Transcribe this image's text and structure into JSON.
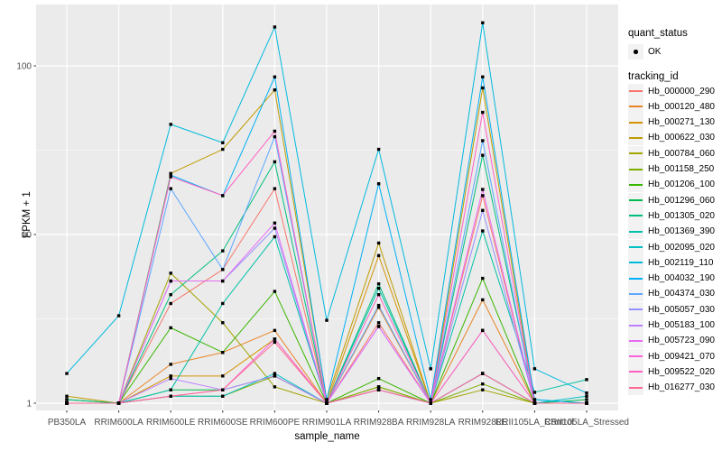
{
  "figure": {
    "background": "#FFFFFF",
    "panel_background": "#EBEBEB",
    "grid_color": "#FFFFFF",
    "tick_label_color": "#4D4D4D",
    "tick_mark_color": "#333333",
    "point_color": "#000000",
    "legend_key_fill": "#F2F2F2"
  },
  "axes": {
    "y": {
      "title": "FPKM + 1",
      "scale": "log10",
      "major_ticks": [
        {
          "label": "100",
          "value": 100
        },
        {
          "label": "10",
          "value": 10
        },
        {
          "label": "1",
          "value": 1
        }
      ],
      "minor_values": [
        31.6228,
        3.16228
      ]
    },
    "x": {
      "title": "sample_name"
    }
  },
  "legend": {
    "quant": {
      "title": "quant_status",
      "ok_label": "OK"
    },
    "tracking": {
      "title": "tracking_id"
    }
  },
  "chart_data": {
    "type": "line",
    "title": "",
    "xlabel": "sample_name",
    "ylabel": "FPKM + 1",
    "y_scale": "log10",
    "ylim": [
      0.9,
      228
    ],
    "legend_position": "right",
    "grid": true,
    "point_shape": "filled-square",
    "categories": [
      "PB350LA",
      "RRIM600LA",
      "RRIM600LE",
      "RRIM600SE",
      "RRIM600PE",
      "RRIM901LA",
      "RRIM928BA",
      "RRIM928LA",
      "RRIM928LE",
      "RRII105LA_Control",
      "RRII105LA_Stressed"
    ],
    "series": [
      {
        "name": "Hb_000000_290",
        "color": "#F8766D",
        "values": [
          1.0,
          1.0,
          3.9,
          6.2,
          18.7,
          1.0,
          3.0,
          1.0,
          17.0,
          1.0,
          1.0
        ]
      },
      {
        "name": "Hb_000120_480",
        "color": "#E88526",
        "values": [
          1.0,
          1.0,
          1.7,
          2.0,
          2.7,
          1.0,
          3.7,
          1.0,
          4.1,
          1.0,
          1.0
        ]
      },
      {
        "name": "Hb_000271_130",
        "color": "#D39200",
        "values": [
          1.0,
          1.0,
          1.45,
          1.45,
          2.4,
          1.0,
          7.5,
          1.0,
          2.7,
          1.0,
          1.0
        ]
      },
      {
        "name": "Hb_000622_030",
        "color": "#C09B00",
        "values": [
          1.1,
          1.0,
          23.0,
          32.0,
          72.0,
          1.05,
          8.9,
          1.0,
          74.0,
          1.0,
          1.0
        ]
      },
      {
        "name": "Hb_000784_060",
        "color": "#A3A500",
        "values": [
          1.0,
          1.0,
          5.9,
          3.0,
          1.25,
          1.0,
          1.25,
          1.0,
          1.2,
          1.0,
          1.0
        ]
      },
      {
        "name": "Hb_001158_250",
        "color": "#7CAE00",
        "values": [
          1.0,
          1.0,
          1.1,
          1.1,
          1.45,
          1.0,
          1.25,
          1.0,
          1.3,
          1.0,
          1.0
        ]
      },
      {
        "name": "Hb_001206_100",
        "color": "#39B600",
        "values": [
          1.0,
          1.0,
          2.8,
          2.0,
          4.6,
          1.0,
          1.4,
          1.0,
          5.5,
          1.0,
          1.0
        ]
      },
      {
        "name": "Hb_001296_060",
        "color": "#00BB4E",
        "values": [
          1.05,
          1.0,
          1.2,
          1.2,
          1.45,
          1.0,
          1.2,
          1.0,
          1.5,
          1.0,
          1.05
        ]
      },
      {
        "name": "Hb_001305_020",
        "color": "#00BF7D",
        "values": [
          1.05,
          1.0,
          4.4,
          8.0,
          27.0,
          1.0,
          5.1,
          1.0,
          29.5,
          1.05,
          1.0
        ]
      },
      {
        "name": "Hb_001369_390",
        "color": "#00C1A7",
        "values": [
          1.0,
          1.0,
          1.2,
          3.9,
          9.7,
          1.0,
          4.8,
          1.0,
          10.5,
          1.16,
          1.38
        ]
      },
      {
        "name": "Hb_002095_020",
        "color": "#00BFC4",
        "values": [
          1.0,
          1.0,
          1.1,
          1.1,
          1.5,
          1.0,
          1.2,
          1.0,
          1.5,
          1.0,
          1.1
        ]
      },
      {
        "name": "Hb_002119_110",
        "color": "#00BADE",
        "values": [
          1.5,
          3.3,
          45.0,
          35.0,
          170.0,
          3.1,
          32.0,
          1.6,
          180.0,
          1.6,
          1.15
        ]
      },
      {
        "name": "Hb_004032_190",
        "color": "#00B0F6",
        "values": [
          1.0,
          1.0,
          22.5,
          17.0,
          86.0,
          1.05,
          20.0,
          1.05,
          86.0,
          1.05,
          1.0
        ]
      },
      {
        "name": "Hb_004374_030",
        "color": "#5CA7FF",
        "values": [
          1.0,
          1.0,
          18.7,
          6.2,
          38.0,
          1.0,
          3.8,
          1.0,
          36.0,
          1.0,
          1.0
        ]
      },
      {
        "name": "Hb_005057_030",
        "color": "#9590FF",
        "values": [
          1.0,
          1.0,
          5.3,
          5.3,
          10.9,
          1.0,
          2.85,
          1.0,
          13.9,
          1.0,
          1.0
        ]
      },
      {
        "name": "Hb_005183_100",
        "color": "#BC80FF",
        "values": [
          1.0,
          1.0,
          1.4,
          1.2,
          1.45,
          1.0,
          1.2,
          1.0,
          1.5,
          1.0,
          1.0
        ]
      },
      {
        "name": "Hb_005723_090",
        "color": "#E76BF3",
        "values": [
          1.0,
          1.0,
          5.3,
          5.3,
          11.7,
          1.0,
          2.85,
          1.0,
          18.5,
          1.0,
          1.0
        ]
      },
      {
        "name": "Hb_009421_070",
        "color": "#FA62DB",
        "values": [
          1.0,
          1.0,
          1.1,
          1.2,
          2.4,
          1.0,
          1.2,
          1.0,
          2.7,
          1.0,
          1.0
        ]
      },
      {
        "name": "Hb_009522_020",
        "color": "#FF61C3",
        "values": [
          1.0,
          1.0,
          22.0,
          17.0,
          41.0,
          1.0,
          4.4,
          1.0,
          53.0,
          1.0,
          1.0
        ]
      },
      {
        "name": "Hb_016277_030",
        "color": "#FF6A93",
        "values": [
          1.0,
          1.0,
          1.1,
          1.2,
          2.3,
          1.0,
          1.2,
          1.0,
          1.5,
          1.0,
          1.0
        ]
      }
    ]
  }
}
